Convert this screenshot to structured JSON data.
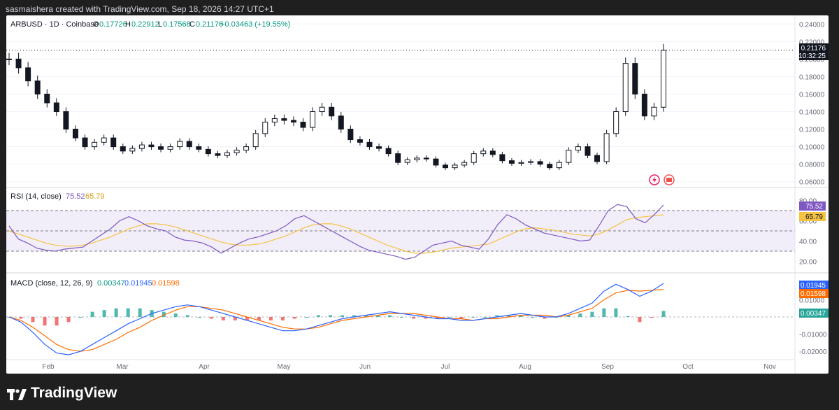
{
  "header": {
    "credit": "sasmaishera created with TradingView.com, Sep 18, 2026 14:27 UTC+1"
  },
  "brand": {
    "name": "TradingView"
  },
  "legend": {
    "symbol": "ARBUSD · 1D · Coinbase",
    "o_label": "O",
    "o": "0.17726",
    "h_label": "H",
    "h": "0.22912",
    "l_label": "L",
    "l": "0.17568",
    "c_label": "C",
    "c": "0.21176",
    "change": "+0.03463 (+19.55%)"
  },
  "price_tag": {
    "price": "0.21176",
    "countdown": "10:32:25"
  },
  "rsi": {
    "label": "RSI (14, close)",
    "value": "75.52",
    "ma": "65.79"
  },
  "macd": {
    "label": "MACD (close, 12, 26, 9)",
    "hist": "0.00347",
    "macd": "0.01945",
    "signal": "0.01598"
  },
  "colors": {
    "up": "#26a69a",
    "down": "#ef5350",
    "rsi": "#7e57c2",
    "rsi_ma": "#f5c242",
    "macd": "#2962ff",
    "signal": "#ff6d00",
    "candle": "#131722"
  },
  "chart_data": {
    "type": "candlestick",
    "x_labels": [
      "Feb",
      "Mar",
      "Apr",
      "May",
      "Jun",
      "Jul",
      "Aug",
      "Sep",
      "Oct",
      "Nov"
    ],
    "price_axis": {
      "range": [
        0.055,
        0.245
      ],
      "ticks": [
        "0.24000",
        "0.22000",
        "0.20000",
        "0.18000",
        "0.16000",
        "0.14000",
        "0.12000",
        "0.10000",
        "0.08000",
        "0.06000"
      ]
    },
    "close_series": [
      0.2,
      0.19,
      0.175,
      0.16,
      0.15,
      0.14,
      0.12,
      0.11,
      0.1,
      0.105,
      0.11,
      0.1,
      0.095,
      0.098,
      0.102,
      0.1,
      0.097,
      0.1,
      0.106,
      0.1,
      0.097,
      0.092,
      0.09,
      0.093,
      0.096,
      0.1,
      0.115,
      0.128,
      0.132,
      0.13,
      0.128,
      0.122,
      0.14,
      0.145,
      0.135,
      0.12,
      0.108,
      0.105,
      0.1,
      0.098,
      0.092,
      0.082,
      0.085,
      0.087,
      0.086,
      0.079,
      0.076,
      0.079,
      0.082,
      0.092,
      0.095,
      0.091,
      0.084,
      0.081,
      0.082,
      0.083,
      0.08,
      0.076,
      0.082,
      0.096,
      0.1,
      0.09,
      0.083,
      0.115,
      0.14,
      0.195,
      0.16,
      0.135,
      0.145,
      0.21
    ],
    "rsi_axis": {
      "range": [
        10,
        90
      ],
      "ticks": [
        "80.00",
        "60.00",
        "40.00",
        "20.00"
      ],
      "band": [
        30,
        70
      ]
    },
    "rsi_series": [
      55,
      42,
      38,
      33,
      31,
      30,
      32,
      33,
      34,
      40,
      46,
      52,
      60,
      64,
      60,
      55,
      52,
      50,
      44,
      41,
      40,
      38,
      34,
      28,
      33,
      38,
      42,
      44,
      47,
      50,
      55,
      62,
      65,
      60,
      55,
      50,
      45,
      40,
      35,
      31,
      29,
      27,
      25,
      22,
      24,
      30,
      36,
      38,
      40,
      36,
      34,
      32,
      42,
      56,
      66,
      62,
      56,
      52,
      48,
      46,
      44,
      42,
      40,
      41,
      55,
      70,
      76,
      74,
      62,
      58,
      66,
      75.5
    ],
    "rsi_ma_series": [
      50,
      47,
      44,
      41,
      38,
      36,
      35,
      35,
      36,
      38,
      41,
      44,
      48,
      52,
      55,
      57,
      57,
      56,
      54,
      51,
      48,
      45,
      42,
      39,
      37,
      36,
      36,
      37,
      39,
      42,
      45,
      49,
      53,
      56,
      57,
      57,
      55,
      52,
      48,
      44,
      40,
      36,
      33,
      30,
      28,
      28,
      29,
      31,
      33,
      34,
      35,
      36,
      37,
      41,
      45,
      49,
      52,
      53,
      52,
      51,
      49,
      47,
      46,
      45,
      47,
      51,
      56,
      61,
      63,
      64,
      65,
      65.8
    ],
    "macd_axis": {
      "range": [
        -0.024,
        0.024
      ],
      "ticks": [
        "0.01000",
        "-0.01000",
        "-0.02000"
      ]
    },
    "macd_series": [
      0,
      -0.003,
      -0.009,
      -0.016,
      -0.021,
      -0.022,
      -0.02,
      -0.016,
      -0.012,
      -0.008,
      -0.004,
      -0.001,
      0.002,
      0.004,
      0.006,
      0.007,
      0.006,
      0.004,
      0.002,
      0,
      -0.002,
      -0.004,
      -0.006,
      -0.008,
      -0.008,
      -0.007,
      -0.005,
      -0.003,
      -0.001,
      0,
      0.001,
      0.002,
      0.003,
      0.002,
      0.001,
      0,
      -0.001,
      -0.001,
      -0.002,
      -0.002,
      -0.001,
      0,
      0.001,
      0.002,
      0.001,
      0,
      0,
      0.002,
      0.005,
      0.008,
      0.015,
      0.019,
      0.016,
      0.012,
      0.015,
      0.0195
    ],
    "signal_series": [
      0,
      -0.002,
      -0.006,
      -0.011,
      -0.016,
      -0.019,
      -0.02,
      -0.019,
      -0.016,
      -0.013,
      -0.009,
      -0.006,
      -0.002,
      0.001,
      0.004,
      0.006,
      0.006,
      0.005,
      0.004,
      0.002,
      0,
      -0.002,
      -0.004,
      -0.006,
      -0.007,
      -0.007,
      -0.006,
      -0.004,
      -0.002,
      -0.001,
      0,
      0.001,
      0.002,
      0.002,
      0.002,
      0.001,
      0,
      -0.001,
      -0.001,
      -0.002,
      -0.001,
      -0.001,
      0,
      0.001,
      0.001,
      0.001,
      0,
      0.001,
      0.003,
      0.005,
      0.01,
      0.014,
      0.0155,
      0.015,
      0.0155,
      0.016
    ]
  }
}
